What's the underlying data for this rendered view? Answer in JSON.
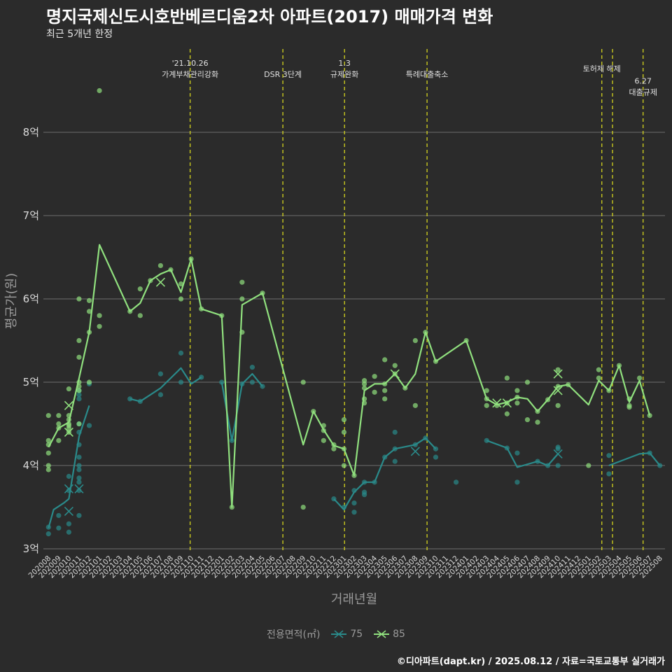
{
  "title": "명지국제신도시호반베르디움2차 아파트(2017) 매매가격 변화",
  "subtitle": "최근 5개년 한정",
  "caption": "©디아파트(dapt.kr) / 2025.08.12 / 자료=국토교통부 실거래가",
  "colors": {
    "background": "#2b2b2b",
    "grid": "#6e6e6e",
    "event_line": "#d4d41e",
    "series_75": "#2a8a8a",
    "series_85": "#90e07e"
  },
  "chart_data": {
    "type": "line",
    "xlabel": "거래년월",
    "ylabel": "평균가(원)",
    "ylim": [
      2.95,
      9.0
    ],
    "yticks": [
      3,
      4,
      5,
      6,
      7,
      8
    ],
    "ytick_labels": [
      "3억",
      "4억",
      "5억",
      "6억",
      "7억",
      "8억"
    ],
    "categories": [
      "202008",
      "202009",
      "202010",
      "202011",
      "202012",
      "202101",
      "202102",
      "202103",
      "202104",
      "202105",
      "202106",
      "202107",
      "202108",
      "202109",
      "202110",
      "202111",
      "202112",
      "202201",
      "202202",
      "202203",
      "202204",
      "202205",
      "202206",
      "202207",
      "202208",
      "202209",
      "202210",
      "202211",
      "202212",
      "202301",
      "202302",
      "202303",
      "202304",
      "202305",
      "202306",
      "202307",
      "202308",
      "202309",
      "202310",
      "202311",
      "202312",
      "202401",
      "202402",
      "202403",
      "202404",
      "202405",
      "202406",
      "202407",
      "202408",
      "202409",
      "202410",
      "202411",
      "202412",
      "202501",
      "202502",
      "202503",
      "202504",
      "202505",
      "202506",
      "202507",
      "202508"
    ],
    "legend_title": "전용면적(㎡)",
    "events": [
      {
        "x": 13.9,
        "label": "'21.10.26\n가계부채관리강화",
        "level": 0
      },
      {
        "x": 23.0,
        "label": "DSR 3단계",
        "level": 1
      },
      {
        "x": 29.05,
        "label": "1.3\n규제완화",
        "level": 0
      },
      {
        "x": 37.15,
        "label": "특례대출축소",
        "level": 1
      },
      {
        "x": 54.3,
        "label": "토허제 해제",
        "level": 0.5
      },
      {
        "x": 55.35,
        "label": "",
        "level": 0
      },
      {
        "x": 58.35,
        "label": "6.27\n대출규제",
        "level": 1.6
      }
    ],
    "series": [
      {
        "name": "75",
        "line": [
          [
            0,
            3.25
          ],
          [
            0.5,
            3.47
          ],
          [
            1.5,
            3.55
          ],
          [
            2,
            3.6
          ],
          [
            3,
            4.35
          ],
          [
            4,
            4.72
          ],
          null,
          [
            8,
            4.8
          ],
          [
            9,
            4.77
          ],
          [
            11,
            4.93
          ],
          [
            13,
            5.17
          ],
          [
            14,
            4.98
          ],
          [
            15,
            5.06
          ],
          null,
          [
            17,
            5.0
          ],
          [
            18,
            4.3
          ],
          [
            19,
            4.98
          ],
          [
            20,
            5.1
          ],
          [
            21,
            4.95
          ],
          null,
          [
            28,
            3.6
          ],
          [
            29,
            3.47
          ],
          [
            30,
            3.68
          ],
          [
            31,
            3.8
          ],
          [
            32,
            3.8
          ],
          [
            33,
            4.1
          ],
          [
            34,
            4.2
          ],
          [
            36,
            4.25
          ],
          [
            37,
            4.33
          ],
          [
            38,
            4.2
          ],
          null,
          [
            43,
            4.3
          ],
          [
            45,
            4.21
          ],
          [
            46,
            3.98
          ],
          [
            48,
            4.05
          ],
          [
            49,
            4.0
          ],
          [
            50,
            4.14
          ],
          null,
          [
            55,
            4.0
          ],
          [
            58,
            4.14
          ],
          [
            59,
            4.15
          ],
          [
            60,
            4.0
          ]
        ],
        "points": [
          [
            0,
            3.26
          ],
          [
            0,
            3.18
          ],
          [
            1,
            3.4
          ],
          [
            1,
            3.25
          ],
          [
            2,
            3.3
          ],
          [
            2,
            3.7
          ],
          [
            2,
            3.87
          ],
          [
            2,
            3.2
          ],
          [
            3,
            4.0
          ],
          [
            3,
            4.1
          ],
          [
            3,
            3.95
          ],
          [
            3,
            3.85
          ],
          [
            3,
            3.8
          ],
          [
            3,
            3.7
          ],
          [
            3,
            3.4
          ],
          [
            3,
            4.5
          ],
          [
            3,
            4.4
          ],
          [
            3,
            4.9
          ],
          [
            3,
            4.85
          ],
          [
            3,
            4.25
          ],
          [
            3,
            4.8
          ],
          [
            4,
            4.98
          ],
          [
            4,
            4.48
          ],
          [
            8,
            4.8
          ],
          [
            9,
            4.77
          ],
          [
            11,
            5.1
          ],
          [
            11,
            4.85
          ],
          [
            13,
            5.35
          ],
          [
            13,
            5.0
          ],
          [
            15,
            5.06
          ],
          [
            17,
            5.0
          ],
          [
            18,
            4.3
          ],
          [
            19,
            4.98
          ],
          [
            20,
            5.18
          ],
          [
            20,
            5.0
          ],
          [
            21,
            4.95
          ],
          [
            28,
            3.6
          ],
          [
            29,
            3.5
          ],
          [
            30,
            3.7
          ],
          [
            30,
            3.44
          ],
          [
            30,
            3.55
          ],
          [
            31,
            3.8
          ],
          [
            31,
            3.68
          ],
          [
            31,
            3.65
          ],
          [
            32,
            3.8
          ],
          [
            33,
            4.1
          ],
          [
            34,
            4.2
          ],
          [
            34,
            4.4
          ],
          [
            34,
            4.05
          ],
          [
            36,
            4.25
          ],
          [
            37,
            4.33
          ],
          [
            38,
            4.2
          ],
          [
            38,
            4.1
          ],
          [
            40,
            3.8
          ],
          [
            43,
            4.3
          ],
          [
            45,
            4.21
          ],
          [
            46,
            4.15
          ],
          [
            46,
            3.8
          ],
          [
            48,
            4.05
          ],
          [
            49,
            4.0
          ],
          [
            50,
            4.2
          ],
          [
            50,
            4.22
          ],
          [
            50,
            4.0
          ],
          [
            55,
            4.12
          ],
          [
            55,
            3.9
          ],
          [
            59,
            4.15
          ],
          [
            60,
            4.0
          ]
        ],
        "crosses": [
          [
            2,
            3.72
          ],
          [
            2,
            3.45
          ],
          [
            3,
            3.72
          ],
          [
            36,
            4.17
          ],
          [
            50,
            4.14
          ]
        ]
      },
      {
        "name": "85",
        "line": [
          [
            0,
            4.22
          ],
          [
            1,
            4.45
          ],
          [
            2,
            4.52
          ],
          [
            3,
            5.05
          ],
          [
            4,
            5.6
          ],
          [
            5,
            6.65
          ],
          [
            8,
            5.85
          ],
          [
            9,
            5.95
          ],
          [
            10,
            6.22
          ],
          [
            11,
            6.3
          ],
          [
            12,
            6.35
          ],
          [
            13,
            6.08
          ],
          [
            14,
            6.48
          ],
          [
            15,
            5.88
          ],
          [
            17,
            5.8
          ],
          [
            18,
            3.5
          ],
          [
            19,
            5.93
          ],
          [
            21,
            6.07
          ],
          [
            25,
            4.25
          ],
          [
            26,
            4.65
          ],
          [
            27,
            4.43
          ],
          [
            28,
            4.24
          ],
          [
            29,
            4.2
          ],
          [
            30,
            3.88
          ],
          [
            31,
            4.9
          ],
          [
            32,
            4.98
          ],
          [
            33,
            4.98
          ],
          [
            34,
            5.1
          ],
          [
            35,
            4.93
          ],
          [
            36,
            5.1
          ],
          [
            37,
            5.6
          ],
          [
            38,
            5.25
          ],
          [
            41,
            5.5
          ],
          [
            43,
            4.8
          ],
          [
            44,
            4.73
          ],
          [
            45,
            4.76
          ],
          [
            46,
            4.82
          ],
          [
            47,
            4.8
          ],
          [
            48,
            4.65
          ],
          [
            49,
            4.79
          ],
          [
            50,
            4.95
          ],
          [
            51,
            4.97
          ],
          [
            53,
            4.73
          ],
          [
            54,
            5.02
          ],
          [
            55,
            4.9
          ],
          [
            56,
            5.2
          ],
          [
            57,
            4.76
          ],
          [
            58,
            5.02
          ],
          [
            59,
            4.6
          ]
        ],
        "points": [
          [
            0,
            4.6
          ],
          [
            0,
            4.3
          ],
          [
            0,
            4.25
          ],
          [
            0,
            4.15
          ],
          [
            0,
            4.0
          ],
          [
            0,
            3.95
          ],
          [
            1,
            4.6
          ],
          [
            1,
            4.5
          ],
          [
            1,
            4.45
          ],
          [
            1,
            4.3
          ],
          [
            2,
            4.92
          ],
          [
            2,
            4.6
          ],
          [
            2,
            4.55
          ],
          [
            2,
            4.5
          ],
          [
            2,
            4.48
          ],
          [
            2,
            4.45
          ],
          [
            2,
            4.4
          ],
          [
            3,
            6.0
          ],
          [
            3,
            5.5
          ],
          [
            3,
            5.3
          ],
          [
            3,
            5.0
          ],
          [
            3,
            4.95
          ],
          [
            3,
            4.9
          ],
          [
            3,
            4.5
          ],
          [
            4,
            5.98
          ],
          [
            4,
            5.85
          ],
          [
            4,
            5.6
          ],
          [
            4,
            5.0
          ],
          [
            5,
            8.5
          ],
          [
            5,
            5.8
          ],
          [
            5,
            5.67
          ],
          [
            8,
            5.85
          ],
          [
            9,
            6.12
          ],
          [
            9,
            5.8
          ],
          [
            10,
            6.22
          ],
          [
            11,
            6.4
          ],
          [
            12,
            6.35
          ],
          [
            13,
            6.18
          ],
          [
            13,
            6.0
          ],
          [
            14,
            6.48
          ],
          [
            15,
            5.88
          ],
          [
            17,
            5.8
          ],
          [
            18,
            3.5
          ],
          [
            19,
            6.2
          ],
          [
            19,
            6.0
          ],
          [
            19,
            5.6
          ],
          [
            21,
            6.07
          ],
          [
            25,
            5.0
          ],
          [
            25,
            3.5
          ],
          [
            26,
            4.65
          ],
          [
            27,
            4.48
          ],
          [
            27,
            4.42
          ],
          [
            27,
            4.3
          ],
          [
            28,
            4.25
          ],
          [
            28,
            4.2
          ],
          [
            29,
            4.55
          ],
          [
            29,
            4.4
          ],
          [
            29,
            4.2
          ],
          [
            29,
            4.0
          ],
          [
            30,
            3.88
          ],
          [
            31,
            5.02
          ],
          [
            31,
            4.98
          ],
          [
            31,
            4.93
          ],
          [
            31,
            4.8
          ],
          [
            31,
            4.75
          ],
          [
            32,
            5.07
          ],
          [
            32,
            4.88
          ],
          [
            33,
            5.27
          ],
          [
            33,
            4.98
          ],
          [
            33,
            4.9
          ],
          [
            33,
            4.8
          ],
          [
            34,
            5.2
          ],
          [
            34,
            5.1
          ],
          [
            35,
            4.93
          ],
          [
            36,
            5.5
          ],
          [
            36,
            4.72
          ],
          [
            37,
            5.6
          ],
          [
            38,
            5.25
          ],
          [
            41,
            5.5
          ],
          [
            43,
            4.9
          ],
          [
            43,
            4.8
          ],
          [
            43,
            4.72
          ],
          [
            44,
            4.72
          ],
          [
            45,
            5.05
          ],
          [
            45,
            4.75
          ],
          [
            45,
            4.62
          ],
          [
            46,
            4.9
          ],
          [
            46,
            4.82
          ],
          [
            46,
            4.75
          ],
          [
            47,
            5.0
          ],
          [
            47,
            4.55
          ],
          [
            48,
            4.65
          ],
          [
            48,
            4.52
          ],
          [
            49,
            4.79
          ],
          [
            50,
            5.15
          ],
          [
            50,
            4.95
          ],
          [
            50,
            4.72
          ],
          [
            51,
            4.97
          ],
          [
            53,
            4.0
          ],
          [
            54,
            5.15
          ],
          [
            54,
            5.05
          ],
          [
            55,
            4.9
          ],
          [
            56,
            5.2
          ],
          [
            57,
            4.8
          ],
          [
            57,
            4.72
          ],
          [
            57,
            4.7
          ],
          [
            58,
            5.05
          ],
          [
            59,
            4.6
          ]
        ],
        "crosses": [
          [
            2,
            4.72
          ],
          [
            2,
            4.4
          ],
          [
            11,
            6.2
          ],
          [
            34,
            5.1
          ],
          [
            44,
            4.75
          ],
          [
            45,
            4.75
          ],
          [
            50,
            5.1
          ],
          [
            50,
            4.9
          ]
        ]
      }
    ]
  }
}
